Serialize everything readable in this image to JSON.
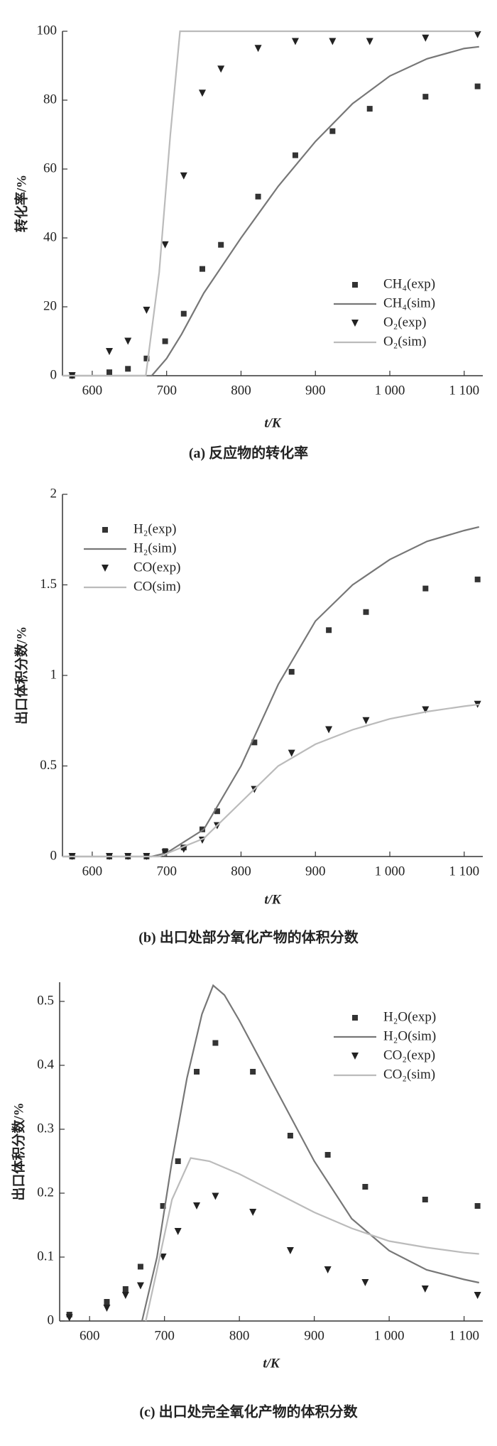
{
  "chart_data": [
    {
      "type": "line",
      "ylabel": "转化率/%",
      "xlabel": "t/K",
      "caption": "(a) 反应物的转化率",
      "xlim": [
        560,
        1125
      ],
      "xticks": [
        600,
        700,
        800,
        900,
        {
          "value": 1000,
          "label": "1 000"
        },
        {
          "value": 1100,
          "label": "1 100"
        }
      ],
      "ylim": [
        0,
        100
      ],
      "yticks": [
        0,
        20,
        40,
        60,
        80,
        100
      ],
      "legend": "lower right",
      "series": [
        {
          "name": "CH₄(exp)",
          "mode": "markers",
          "marker": "square",
          "color": "#333333",
          "x": [
            573,
            623,
            648,
            673,
            698,
            723,
            748,
            773,
            823,
            873,
            923,
            973,
            1048,
            1118
          ],
          "values": [
            0,
            1,
            2,
            5,
            10,
            18,
            31,
            38,
            52,
            64,
            71,
            77.5,
            81,
            84
          ]
        },
        {
          "name": "CH₄(sim)",
          "mode": "lines",
          "color": "#777777",
          "x": [
            560,
            680,
            700,
            720,
            750,
            800,
            850,
            900,
            950,
            1000,
            1050,
            1100,
            1120
          ],
          "values": [
            0,
            0,
            5,
            12,
            24,
            40,
            55,
            68,
            79,
            87,
            92,
            95,
            95.5
          ]
        },
        {
          "name": "O₂(exp)",
          "mode": "markers",
          "marker": "triangle-down",
          "color": "#222222",
          "x": [
            573,
            623,
            648,
            673,
            698,
            723,
            748,
            773,
            823,
            873,
            923,
            973,
            1048,
            1118
          ],
          "values": [
            0,
            7,
            10,
            19,
            38,
            58,
            82,
            89,
            95,
            97,
            97,
            97,
            98,
            99
          ]
        },
        {
          "name": "O₂(sim)",
          "mode": "lines",
          "color": "#bbbbbb",
          "x": [
            560,
            672,
            690,
            705,
            718,
            1120
          ],
          "values": [
            0,
            0,
            30,
            70,
            100,
            100
          ]
        }
      ]
    },
    {
      "type": "line",
      "ylabel": "出口体积分数/%",
      "xlabel": "t/K",
      "caption": "(b) 出口处部分氧化产物的体积分数",
      "xlim": [
        560,
        1125
      ],
      "xticks": [
        600,
        700,
        800,
        900,
        {
          "value": 1000,
          "label": "1 000"
        },
        {
          "value": 1100,
          "label": "1 100"
        }
      ],
      "ylim": [
        0,
        2
      ],
      "yticks": [
        0,
        0.5,
        1,
        1.5,
        2
      ],
      "legend": "upper left",
      "series": [
        {
          "name": "H₂(exp)",
          "mode": "markers",
          "marker": "square",
          "color": "#333333",
          "x": [
            573,
            623,
            648,
            673,
            698,
            723,
            748,
            768,
            818,
            868,
            918,
            968,
            1048,
            1118
          ],
          "values": [
            0,
            0,
            0,
            0,
            0.03,
            0.05,
            0.15,
            0.25,
            0.63,
            1.02,
            1.25,
            1.35,
            1.48,
            1.53
          ]
        },
        {
          "name": "H₂(sim)",
          "mode": "lines",
          "color": "#777777",
          "x": [
            560,
            680,
            700,
            750,
            800,
            850,
            900,
            950,
            1000,
            1050,
            1100,
            1120
          ],
          "values": [
            0,
            0,
            0.02,
            0.15,
            0.5,
            0.95,
            1.3,
            1.5,
            1.64,
            1.74,
            1.8,
            1.82
          ]
        },
        {
          "name": "CO(exp)",
          "mode": "markers",
          "marker": "triangle-down",
          "color": "#222222",
          "x": [
            573,
            623,
            648,
            673,
            698,
            723,
            748,
            768,
            818,
            868,
            918,
            968,
            1048,
            1118
          ],
          "values": [
            0,
            0,
            0,
            0,
            0.02,
            0.04,
            0.09,
            0.17,
            0.37,
            0.57,
            0.7,
            0.75,
            0.81,
            0.84
          ]
        },
        {
          "name": "CO(sim)",
          "mode": "lines",
          "color": "#bbbbbb",
          "x": [
            560,
            690,
            750,
            800,
            850,
            900,
            950,
            1000,
            1050,
            1100,
            1120
          ],
          "values": [
            0,
            0,
            0.1,
            0.3,
            0.5,
            0.62,
            0.7,
            0.76,
            0.8,
            0.83,
            0.84
          ]
        }
      ]
    },
    {
      "type": "line",
      "ylabel": "出口体积分数/%",
      "xlabel": "t/K",
      "caption": "(c) 出口处完全氧化产物的体积分数",
      "xlim": [
        560,
        1125
      ],
      "xticks": [
        600,
        700,
        800,
        900,
        {
          "value": 1000,
          "label": "1 000"
        },
        {
          "value": 1100,
          "label": "1 100"
        }
      ],
      "ylim": [
        0,
        0.53
      ],
      "yticks": [
        0,
        0.1,
        0.2,
        0.3,
        0.4,
        0.5
      ],
      "legend": "upper right",
      "series": [
        {
          "name": "H₂O(exp)",
          "mode": "markers",
          "marker": "square",
          "color": "#333333",
          "x": [
            573,
            623,
            648,
            668,
            698,
            718,
            743,
            768,
            818,
            868,
            918,
            968,
            1048,
            1118
          ],
          "values": [
            0.01,
            0.03,
            0.05,
            0.085,
            0.18,
            0.25,
            0.39,
            0.435,
            0.39,
            0.29,
            0.26,
            0.21,
            0.19,
            0.18
          ]
        },
        {
          "name": "H₂O(sim)",
          "mode": "lines",
          "color": "#777777",
          "x": [
            670,
            690,
            710,
            730,
            750,
            765,
            780,
            800,
            850,
            900,
            950,
            1000,
            1050,
            1100,
            1120
          ],
          "values": [
            0,
            0.1,
            0.25,
            0.38,
            0.48,
            0.525,
            0.51,
            0.47,
            0.36,
            0.25,
            0.16,
            0.11,
            0.08,
            0.065,
            0.06
          ]
        },
        {
          "name": "CO₂(exp)",
          "mode": "markers",
          "marker": "triangle-down",
          "color": "#222222",
          "x": [
            573,
            623,
            648,
            668,
            698,
            718,
            743,
            768,
            818,
            868,
            918,
            968,
            1048,
            1118
          ],
          "values": [
            0.005,
            0.02,
            0.04,
            0.055,
            0.1,
            0.14,
            0.18,
            0.195,
            0.17,
            0.11,
            0.08,
            0.06,
            0.05,
            0.04
          ]
        },
        {
          "name": "CO₂(sim)",
          "mode": "lines",
          "color": "#bbbbbb",
          "x": [
            675,
            690,
            710,
            735,
            760,
            800,
            850,
            900,
            950,
            1000,
            1050,
            1100,
            1120
          ],
          "values": [
            0,
            0.08,
            0.19,
            0.255,
            0.25,
            0.23,
            0.2,
            0.17,
            0.145,
            0.125,
            0.115,
            0.107,
            0.105
          ]
        }
      ]
    }
  ]
}
